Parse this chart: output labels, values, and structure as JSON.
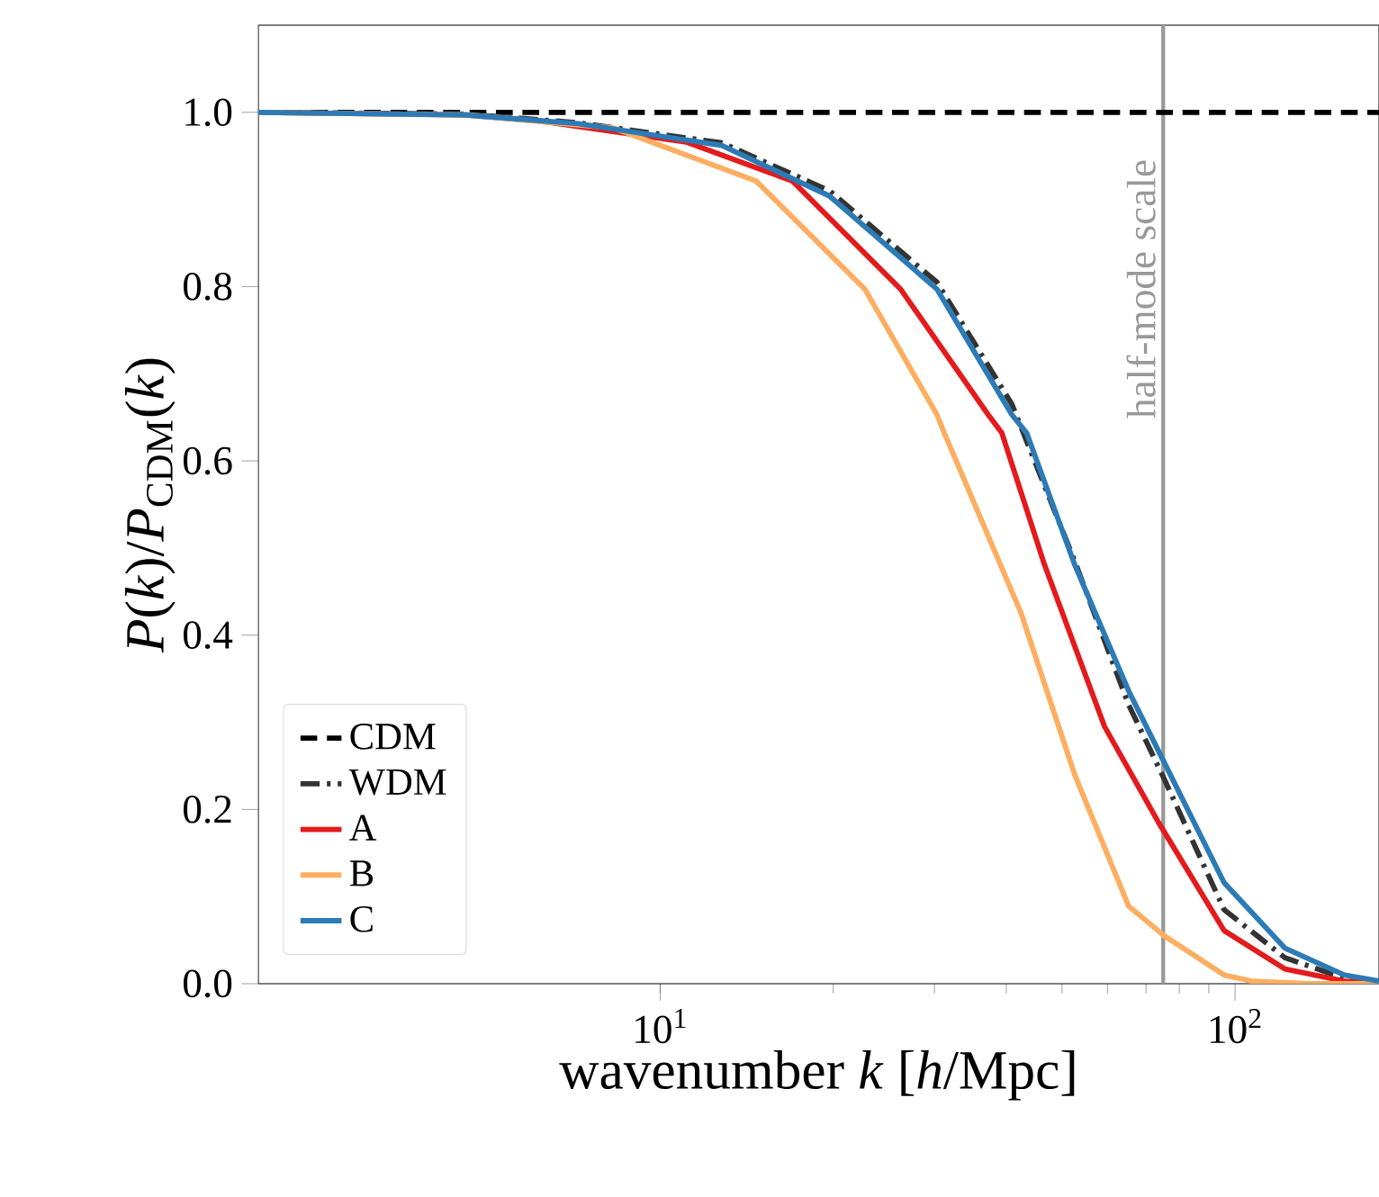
{
  "chart_data": {
    "type": "line",
    "xlabel": "wavenumber *k* [*h*/Mpc]",
    "ylabel": "*P*(*k*)/*P*$_{CDM}$(*k*)",
    "log": "x",
    "xlim": [
      2,
      178
    ],
    "ylim": [
      0,
      1.1
    ],
    "xticks": [
      {
        "value": 10,
        "label": "10$^{1}$"
      },
      {
        "value": 100,
        "label": "10$^{2}$"
      }
    ],
    "yticks": [
      {
        "value": 0,
        "label": "0.0"
      },
      {
        "value": 0.2,
        "label": "0.2"
      },
      {
        "value": 0.4,
        "label": "0.4"
      },
      {
        "value": 0.6,
        "label": "0.6"
      },
      {
        "value": 0.8,
        "label": "0.8"
      },
      {
        "value": 1.0,
        "label": "1.0"
      }
    ],
    "legend": "bottom left",
    "ref_lines": [
      {
        "axis": "x",
        "value": 75,
        "label": "half-mode scale",
        "color": "#999999"
      }
    ],
    "series": [
      {
        "name": "CDM",
        "color": "#000000",
        "line_style": "dashed",
        "x": [
          2,
          178
        ],
        "values": [
          1.0,
          1.0
        ]
      },
      {
        "name": "WDM",
        "color": "#333333",
        "line_style": "dashdot",
        "x": [
          2,
          4.6,
          7.2,
          12.8,
          19.7,
          30.3,
          40.9,
          52.6,
          65.3,
          75.3,
          95.7,
          122,
          155,
          178
        ],
        "values": [
          1.0,
          0.998,
          0.988,
          0.965,
          0.91,
          0.805,
          0.665,
          0.485,
          0.32,
          0.235,
          0.085,
          0.03,
          0.006,
          0.002
        ]
      },
      {
        "name": "A",
        "color": "#e41a1c",
        "line_style": "solid",
        "x": [
          2,
          4.6,
          6.2,
          11.1,
          17,
          26.2,
          37.2,
          39.3,
          46.6,
          59.3,
          73.6,
          95.7,
          122,
          155,
          178
        ],
        "values": [
          1.0,
          0.997,
          0.99,
          0.966,
          0.921,
          0.797,
          0.653,
          0.632,
          0.481,
          0.295,
          0.185,
          0.061,
          0.017,
          0.003,
          0.001
        ]
      },
      {
        "name": "B",
        "color": "#fdae61",
        "line_style": "solid",
        "x": [
          2,
          4.66,
          8.3,
          14.7,
          22.7,
          30.3,
          31.2,
          42.4,
          52.6,
          65.3,
          75.3,
          95.7,
          107,
          135,
          178
        ],
        "values": [
          1.0,
          0.997,
          0.982,
          0.921,
          0.797,
          0.653,
          0.632,
          0.426,
          0.24,
          0.089,
          0.055,
          0.01,
          0.003,
          0.0,
          0.0
        ]
      },
      {
        "name": "C",
        "color": "#2c7bb6",
        "line_style": "solid",
        "x": [
          2,
          4.6,
          7.2,
          12.8,
          19.7,
          30.3,
          40.9,
          43.4,
          52.6,
          65.3,
          75.3,
          95.7,
          122,
          155,
          178
        ],
        "values": [
          1.0,
          0.997,
          0.987,
          0.962,
          0.904,
          0.797,
          0.653,
          0.632,
          0.481,
          0.336,
          0.254,
          0.116,
          0.041,
          0.01,
          0.003
        ]
      }
    ]
  }
}
